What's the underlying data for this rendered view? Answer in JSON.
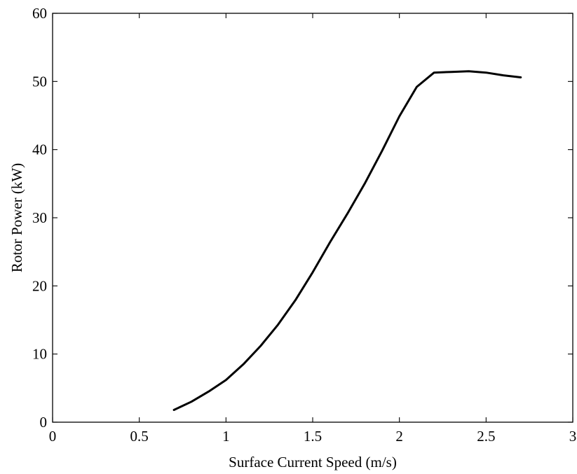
{
  "chart_data": {
    "type": "line",
    "title": "",
    "xlabel": "Surface Current Speed (m/s)",
    "ylabel": "Rotor Power (kW)",
    "xlim": [
      0,
      3
    ],
    "ylim": [
      0,
      60
    ],
    "xticks": [
      0,
      0.5,
      1,
      1.5,
      2,
      2.5,
      3
    ],
    "xtick_labels": [
      "0",
      "0.5",
      "1",
      "1.5",
      "2",
      "2.5",
      "3"
    ],
    "yticks": [
      0,
      10,
      20,
      30,
      40,
      50,
      60
    ],
    "ytick_labels": [
      "0",
      "10",
      "20",
      "30",
      "40",
      "50",
      "60"
    ],
    "grid": false,
    "line_color": "#000000",
    "series": [
      {
        "x": [
          0.7,
          0.8,
          0.9,
          1.0,
          1.1,
          1.2,
          1.3,
          1.4,
          1.5,
          1.6,
          1.7,
          1.8,
          1.9,
          2.0,
          2.1,
          2.2,
          2.3,
          2.4,
          2.5,
          2.6,
          2.7
        ],
        "y": [
          1.8,
          3.0,
          4.5,
          6.2,
          8.5,
          11.2,
          14.3,
          17.9,
          22.0,
          26.4,
          30.6,
          35.0,
          39.8,
          44.9,
          49.2,
          51.3,
          51.4,
          51.5,
          51.3,
          50.9,
          50.6
        ]
      }
    ]
  }
}
